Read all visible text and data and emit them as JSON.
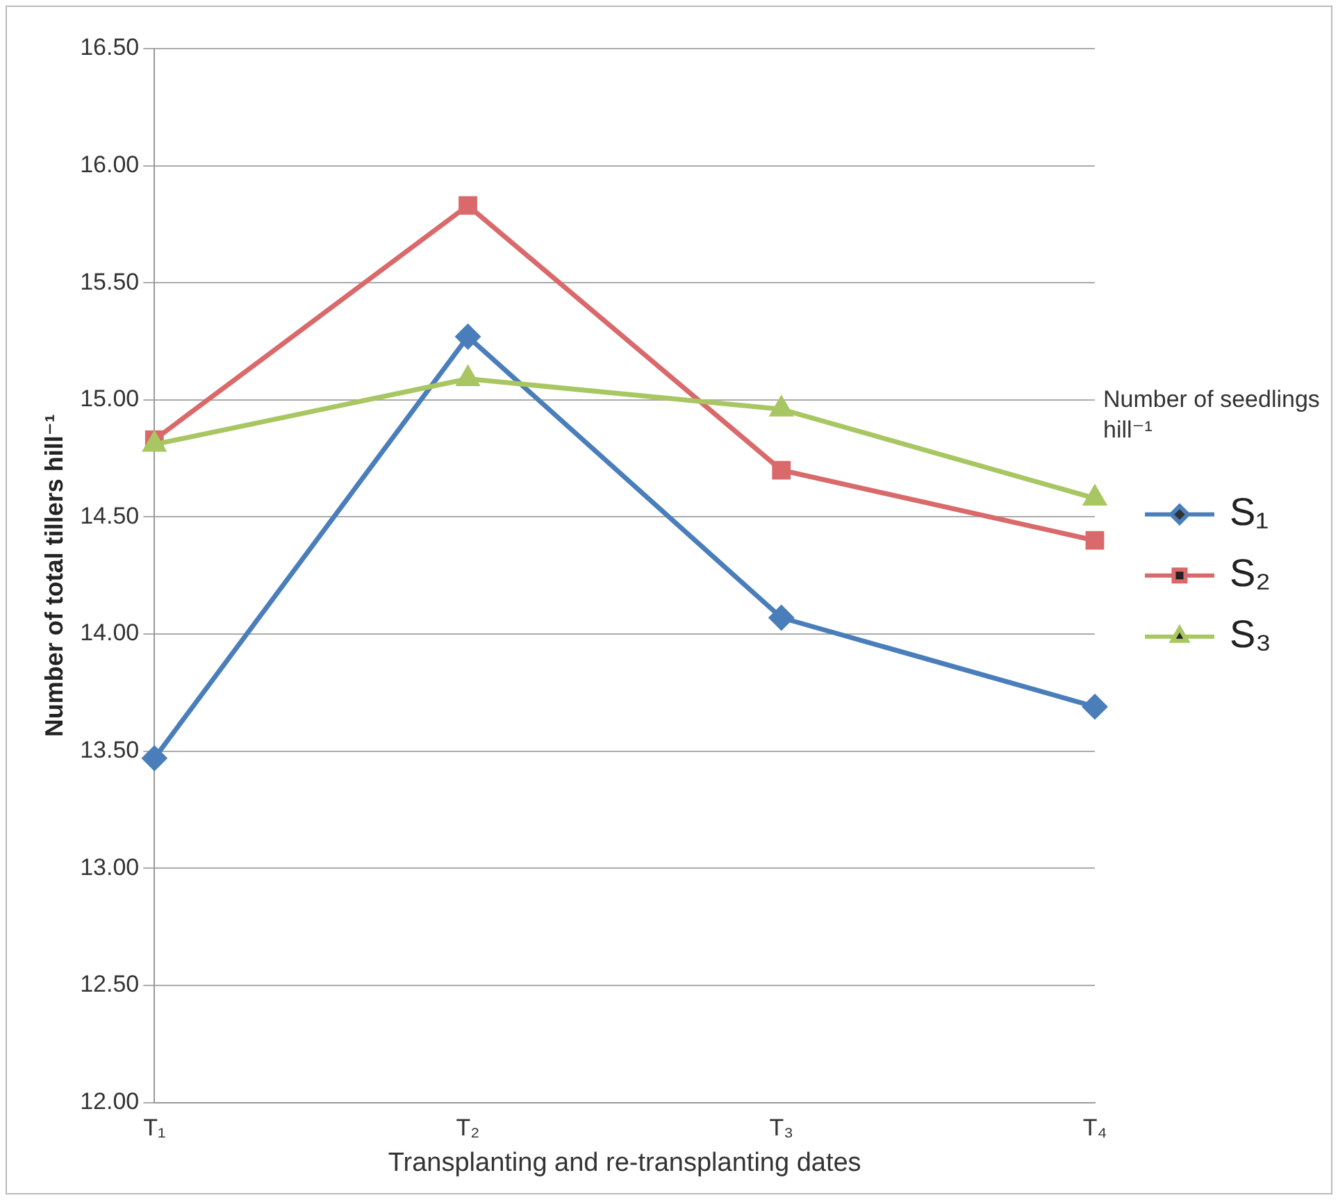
{
  "chart_data": {
    "type": "line",
    "xlabel": "Transplanting and re-transplanting dates",
    "ylabel": "Number of total tillers hill⁻¹",
    "legend_title": "Number of seedlings hill⁻¹",
    "categories": [
      "T₁",
      "T₂",
      "T₃",
      "T₄"
    ],
    "series": [
      {
        "name": "S₁",
        "color": "#4a7ebb",
        "marker": "diamond",
        "values": [
          13.47,
          15.27,
          14.07,
          13.69
        ]
      },
      {
        "name": "S₂",
        "color": "#d9696a",
        "marker": "square",
        "values": [
          14.83,
          15.83,
          14.7,
          14.4
        ]
      },
      {
        "name": "S₃",
        "color": "#a8c661",
        "marker": "triangle",
        "values": [
          14.81,
          15.09,
          14.96,
          14.58
        ]
      }
    ],
    "ylim": [
      12,
      16.5
    ],
    "yticks": [
      {
        "value": 12,
        "label": "12.00"
      },
      {
        "value": 12.5,
        "label": "12.50"
      },
      {
        "value": 13,
        "label": "13.00"
      },
      {
        "value": 13.5,
        "label": "13.50"
      },
      {
        "value": 14,
        "label": "14.00"
      },
      {
        "value": 14.5,
        "label": "14.50"
      },
      {
        "value": 15,
        "label": "15.00"
      },
      {
        "value": 15.5,
        "label": "15.50"
      },
      {
        "value": 16,
        "label": "16.00"
      },
      {
        "value": 16.5,
        "label": "16.50"
      }
    ],
    "grid": "y",
    "legend": "right",
    "line_style": "solid"
  }
}
